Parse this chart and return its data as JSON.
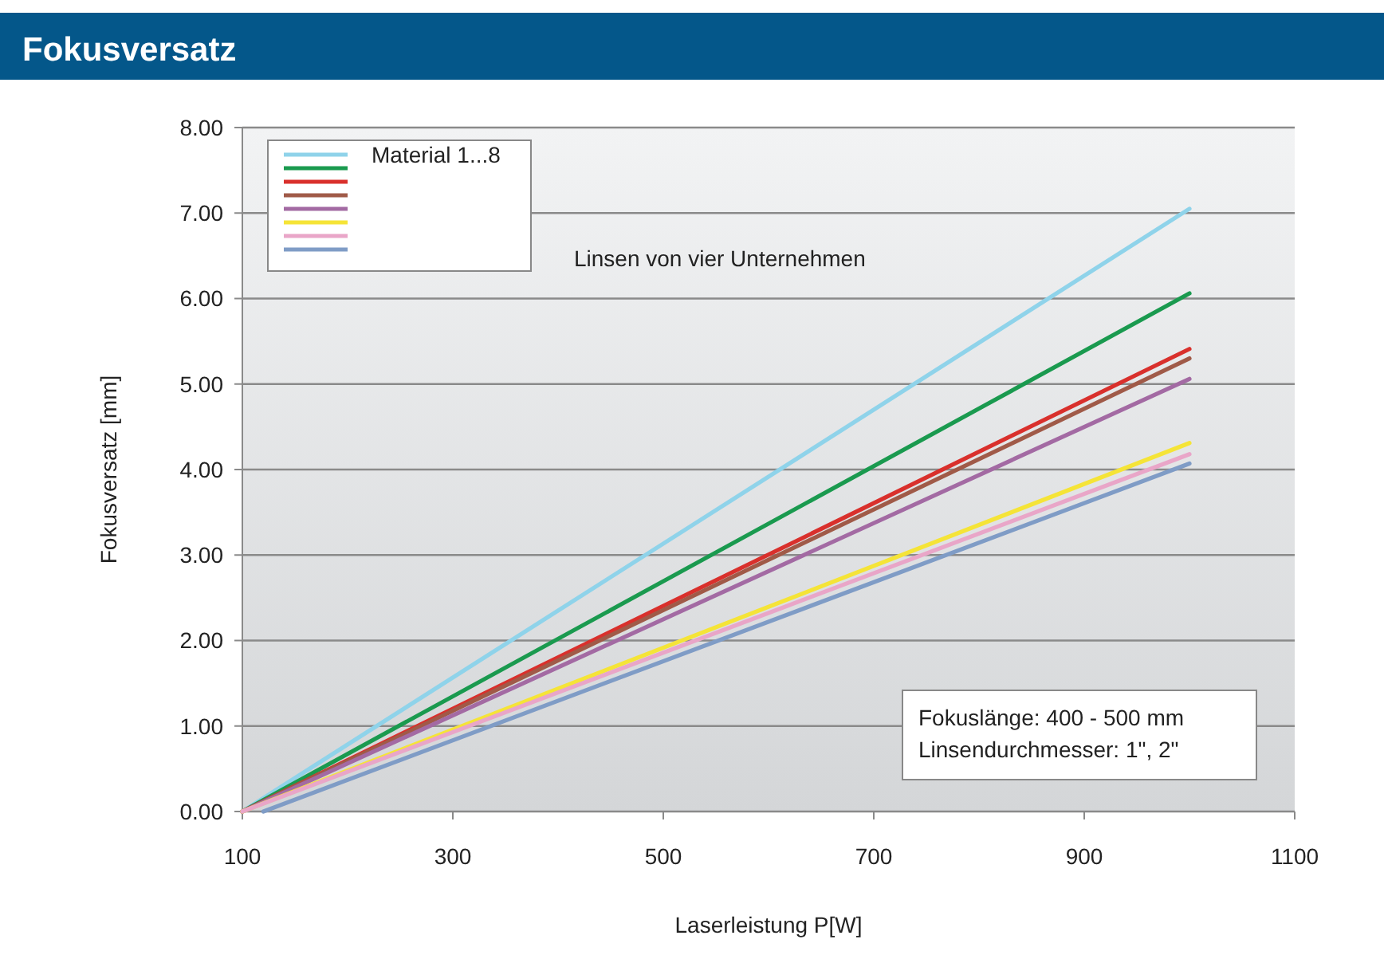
{
  "chart_data": {
    "type": "line",
    "title": "Fokusversatz",
    "xlabel": "Laserleistung P[W]",
    "ylabel": "Fokusversatz [mm]",
    "legend": "top left",
    "grid": "y",
    "marker": "none",
    "line_style": "solid",
    "xlim": [
      100,
      1100
    ],
    "xticks": [
      100,
      300,
      500,
      700,
      900,
      1100
    ],
    "ylim": [
      0,
      8
    ],
    "yticks": [
      {
        "value": 0,
        "label": "0.00"
      },
      {
        "value": 1,
        "label": "1.00"
      },
      {
        "value": 2,
        "label": "2.00"
      },
      {
        "value": 3,
        "label": "3.00"
      },
      {
        "value": 4,
        "label": "4.00"
      },
      {
        "value": 5,
        "label": "5.00"
      },
      {
        "value": 6,
        "label": "6.00"
      },
      {
        "value": 7,
        "label": "7.00"
      },
      {
        "value": 8,
        "label": "8.00"
      }
    ],
    "series": [
      {
        "name": "Material 1...8",
        "color": "#8fd3ea",
        "x": [
          100,
          1000
        ],
        "values": [
          0,
          7.05
        ]
      },
      {
        "color": "#1a9a4f",
        "x": [
          100,
          1000
        ],
        "values": [
          0,
          6.06
        ]
      },
      {
        "color": "#d9302c",
        "x": [
          100,
          1000
        ],
        "values": [
          0,
          5.41
        ]
      },
      {
        "color": "#a05a48",
        "x": [
          100,
          1000
        ],
        "values": [
          0,
          5.3
        ]
      },
      {
        "color": "#a36aa3",
        "x": [
          100,
          1000
        ],
        "values": [
          0,
          5.06
        ]
      },
      {
        "color": "#f5e437",
        "x": [
          100,
          1000
        ],
        "values": [
          0,
          4.31
        ]
      },
      {
        "color": "#e9a6c8",
        "x": [
          100,
          1000
        ],
        "values": [
          0,
          4.18
        ]
      },
      {
        "color": "#7f9cc6",
        "x": [
          120,
          1000
        ],
        "values": [
          0,
          4.07
        ]
      }
    ],
    "annotations": [
      "Linsen von vier Unternehmen",
      "Fokuslänge: 400 - 500 mm",
      "Linsendurchmesser: 1\", 2\""
    ]
  }
}
